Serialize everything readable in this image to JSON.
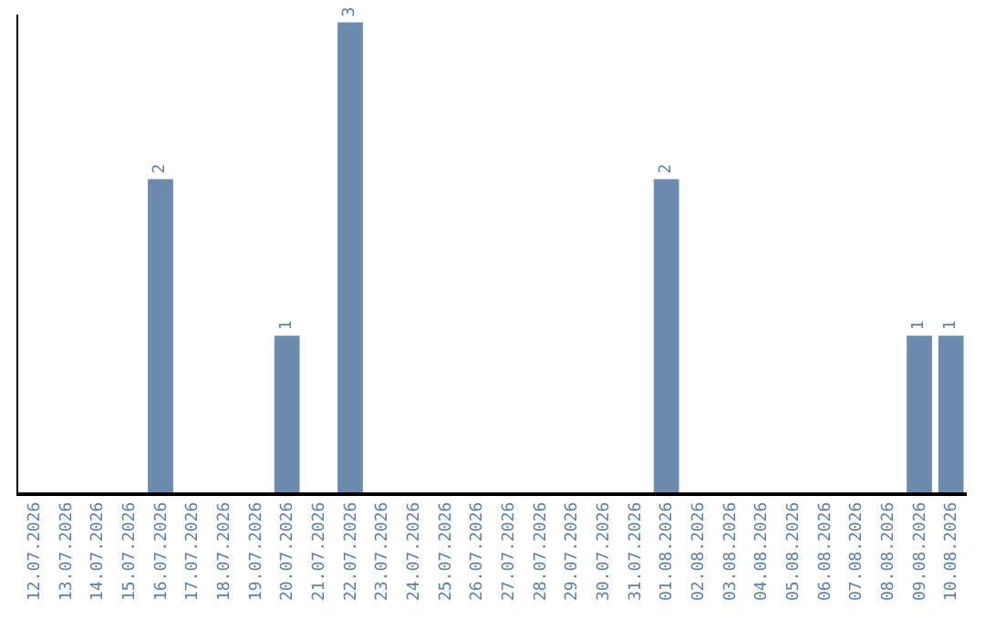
{
  "chart_data": {
    "type": "bar",
    "categories": [
      "12.07.2026",
      "13.07.2026",
      "14.07.2026",
      "15.07.2026",
      "16.07.2026",
      "17.07.2026",
      "18.07.2026",
      "19.07.2026",
      "20.07.2026",
      "21.07.2026",
      "22.07.2026",
      "23.07.2026",
      "24.07.2026",
      "25.07.2026",
      "26.07.2026",
      "27.07.2026",
      "28.07.2026",
      "29.07.2026",
      "30.07.2026",
      "31.07.2026",
      "01.08.2026",
      "02.08.2026",
      "03.08.2026",
      "04.08.2026",
      "05.08.2026",
      "06.08.2026",
      "07.08.2026",
      "08.08.2026",
      "09.08.2026",
      "10.08.2026"
    ],
    "values": [
      0,
      0,
      0,
      0,
      2,
      0,
      0,
      0,
      1,
      0,
      3,
      0,
      0,
      0,
      0,
      0,
      0,
      0,
      0,
      0,
      2,
      0,
      0,
      0,
      0,
      0,
      0,
      0,
      1,
      1
    ],
    "value_labels": [
      null,
      null,
      null,
      null,
      "2",
      null,
      null,
      null,
      "1",
      null,
      "3",
      null,
      null,
      null,
      null,
      null,
      null,
      null,
      null,
      null,
      "2",
      null,
      null,
      null,
      null,
      null,
      null,
      null,
      "1",
      "1"
    ],
    "color": "#6b8cac",
    "ylim": [
      0,
      3.05
    ],
    "tick_labels": "x"
  }
}
